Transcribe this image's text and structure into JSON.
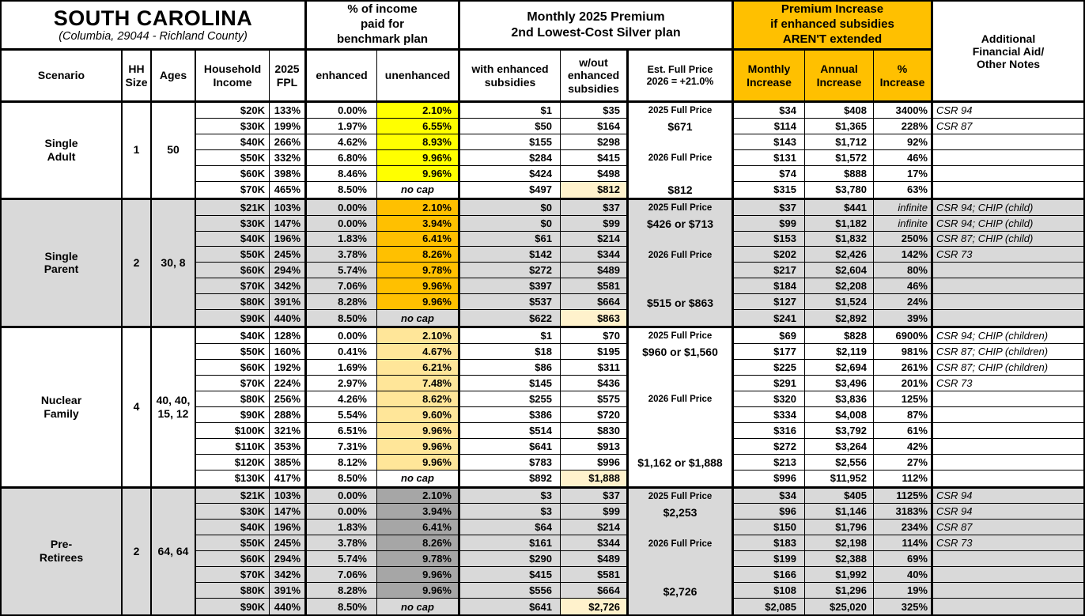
{
  "title": {
    "state": "SOUTH CAROLINA",
    "location": "(Columbia, 29044 - Richland County)"
  },
  "header": {
    "pct_income_group": "% of income\npaid for\nbenchmark plan",
    "premium_group": "Monthly 2025 Premium\n2nd Lowest-Cost Silver plan",
    "increase_group": "Premium Increase\nif enhanced subsidies\nAREN'T extended",
    "notes_col": "Additional\nFinancial Aid/\nOther Notes",
    "cols": {
      "scenario": "Scenario",
      "hh": "HH\nSize",
      "ages": "Ages",
      "income": "Household\nIncome",
      "fpl": "2025\nFPL",
      "enhanced": "enhanced",
      "unenhanced": "unenhanced",
      "with_sub": "with enhanced\nsubsidies",
      "wo_sub": "w/out\nenhanced\nsubsidies",
      "est": "Est. Full Price\n2026 = +21.0%",
      "monthly": "Monthly\nIncrease",
      "annual": "Annual\nIncrease",
      "pct": "%\nIncrease"
    }
  },
  "colors": {
    "accent_orange": "#FFC000",
    "yellow": "#FFFF00",
    "tan": "#FFE699",
    "dark_gray": "#A6A6A6",
    "band_gray": "#D9D9D9",
    "highlight_cream": "#FFF2CC"
  },
  "row_fields": [
    "income",
    "fpl",
    "enhanced",
    "unenhanced",
    "with_subsidies",
    "without_subsidies",
    "monthly_increase",
    "annual_increase",
    "pct_increase",
    "note"
  ],
  "sections": [
    {
      "scenario": "Single\nAdult",
      "hh_size": "1",
      "ages": "50",
      "gray": false,
      "unenhanced_color": "#FFFF00",
      "rows": [
        [
          "$20K",
          "133%",
          "0.00%",
          "2.10%",
          "$1",
          "$35",
          "$34",
          "$408",
          "3400%",
          "CSR 94"
        ],
        [
          "$30K",
          "199%",
          "1.97%",
          "6.55%",
          "$50",
          "$164",
          "$114",
          "$1,365",
          "228%",
          "CSR 87"
        ],
        [
          "$40K",
          "266%",
          "4.62%",
          "8.93%",
          "$155",
          "$298",
          "$143",
          "$1,712",
          "92%",
          ""
        ],
        [
          "$50K",
          "332%",
          "6.80%",
          "9.96%",
          "$284",
          "$415",
          "$131",
          "$1,572",
          "46%",
          ""
        ],
        [
          "$60K",
          "398%",
          "8.46%",
          "9.96%",
          "$424",
          "$498",
          "$74",
          "$888",
          "17%",
          ""
        ],
        [
          "$70K",
          "465%",
          "8.50%",
          "no cap",
          "$497",
          "$812",
          "$315",
          "$3,780",
          "63%",
          ""
        ]
      ],
      "full_price_labels": [
        {
          "row": 0,
          "text": "2025 Full Price",
          "small": true
        },
        {
          "row": 1,
          "text": "$671",
          "small": false
        },
        {
          "row": 3,
          "text": "2026 Full Price",
          "small": true
        },
        {
          "row": 5,
          "text": "$812",
          "small": false
        }
      ]
    },
    {
      "scenario": "Single\nParent",
      "hh_size": "2",
      "ages": "30, 8",
      "gray": true,
      "unenhanced_color": "#FFC000",
      "rows": [
        [
          "$21K",
          "103%",
          "0.00%",
          "2.10%",
          "$0",
          "$37",
          "$37",
          "$441",
          "infinite",
          "CSR 94; CHIP (child)"
        ],
        [
          "$30K",
          "147%",
          "0.00%",
          "3.94%",
          "$0",
          "$99",
          "$99",
          "$1,182",
          "infinite",
          "CSR 94; CHIP (child)"
        ],
        [
          "$40K",
          "196%",
          "1.83%",
          "6.41%",
          "$61",
          "$214",
          "$153",
          "$1,832",
          "250%",
          "CSR 87; CHIP (child)"
        ],
        [
          "$50K",
          "245%",
          "3.78%",
          "8.26%",
          "$142",
          "$344",
          "$202",
          "$2,426",
          "142%",
          "CSR 73"
        ],
        [
          "$60K",
          "294%",
          "5.74%",
          "9.78%",
          "$272",
          "$489",
          "$217",
          "$2,604",
          "80%",
          ""
        ],
        [
          "$70K",
          "342%",
          "7.06%",
          "9.96%",
          "$397",
          "$581",
          "$184",
          "$2,208",
          "46%",
          ""
        ],
        [
          "$80K",
          "391%",
          "8.28%",
          "9.96%",
          "$537",
          "$664",
          "$127",
          "$1,524",
          "24%",
          ""
        ],
        [
          "$90K",
          "440%",
          "8.50%",
          "no cap",
          "$622",
          "$863",
          "$241",
          "$2,892",
          "39%",
          ""
        ]
      ],
      "full_price_labels": [
        {
          "row": 0,
          "text": "2025 Full Price",
          "small": true
        },
        {
          "row": 1,
          "text": "$426 or $713",
          "small": false
        },
        {
          "row": 3,
          "text": "2026 Full Price",
          "small": true
        },
        {
          "row": 6,
          "text": "$515 or $863",
          "small": false
        }
      ]
    },
    {
      "scenario": "Nuclear\nFamily",
      "hh_size": "4",
      "ages": "40, 40,\n15, 12",
      "gray": false,
      "unenhanced_color": "#FFE699",
      "rows": [
        [
          "$40K",
          "128%",
          "0.00%",
          "2.10%",
          "$1",
          "$70",
          "$69",
          "$828",
          "6900%",
          "CSR 94; CHIP (children)"
        ],
        [
          "$50K",
          "160%",
          "0.41%",
          "4.67%",
          "$18",
          "$195",
          "$177",
          "$2,119",
          "981%",
          "CSR 87; CHIP (children)"
        ],
        [
          "$60K",
          "192%",
          "1.69%",
          "6.21%",
          "$86",
          "$311",
          "$225",
          "$2,694",
          "261%",
          "CSR 87; CHIP (children)"
        ],
        [
          "$70K",
          "224%",
          "2.97%",
          "7.48%",
          "$145",
          "$436",
          "$291",
          "$3,496",
          "201%",
          "CSR 73"
        ],
        [
          "$80K",
          "256%",
          "4.26%",
          "8.62%",
          "$255",
          "$575",
          "$320",
          "$3,836",
          "125%",
          ""
        ],
        [
          "$90K",
          "288%",
          "5.54%",
          "9.60%",
          "$386",
          "$720",
          "$334",
          "$4,008",
          "87%",
          ""
        ],
        [
          "$100K",
          "321%",
          "6.51%",
          "9.96%",
          "$514",
          "$830",
          "$316",
          "$3,792",
          "61%",
          ""
        ],
        [
          "$110K",
          "353%",
          "7.31%",
          "9.96%",
          "$641",
          "$913",
          "$272",
          "$3,264",
          "42%",
          ""
        ],
        [
          "$120K",
          "385%",
          "8.12%",
          "9.96%",
          "$783",
          "$996",
          "$213",
          "$2,556",
          "27%",
          ""
        ],
        [
          "$130K",
          "417%",
          "8.50%",
          "no cap",
          "$892",
          "$1,888",
          "$996",
          "$11,952",
          "112%",
          ""
        ]
      ],
      "full_price_labels": [
        {
          "row": 0,
          "text": "2025 Full Price",
          "small": true
        },
        {
          "row": 1,
          "text": "$960 or $1,560",
          "small": false
        },
        {
          "row": 4,
          "text": "2026 Full Price",
          "small": true
        },
        {
          "row": 8,
          "text": "$1,162 or $1,888",
          "small": false
        }
      ]
    },
    {
      "scenario": "Pre-\nRetirees",
      "hh_size": "2",
      "ages": "64, 64",
      "gray": true,
      "unenhanced_color": "#A6A6A6",
      "rows": [
        [
          "$21K",
          "103%",
          "0.00%",
          "2.10%",
          "$3",
          "$37",
          "$34",
          "$405",
          "1125%",
          "CSR 94"
        ],
        [
          "$30K",
          "147%",
          "0.00%",
          "3.94%",
          "$3",
          "$99",
          "$96",
          "$1,146",
          "3183%",
          "CSR 94"
        ],
        [
          "$40K",
          "196%",
          "1.83%",
          "6.41%",
          "$64",
          "$214",
          "$150",
          "$1,796",
          "234%",
          "CSR 87"
        ],
        [
          "$50K",
          "245%",
          "3.78%",
          "8.26%",
          "$161",
          "$344",
          "$183",
          "$2,198",
          "114%",
          "CSR 73"
        ],
        [
          "$60K",
          "294%",
          "5.74%",
          "9.78%",
          "$290",
          "$489",
          "$199",
          "$2,388",
          "69%",
          ""
        ],
        [
          "$70K",
          "342%",
          "7.06%",
          "9.96%",
          "$415",
          "$581",
          "$166",
          "$1,992",
          "40%",
          ""
        ],
        [
          "$80K",
          "391%",
          "8.28%",
          "9.96%",
          "$556",
          "$664",
          "$108",
          "$1,296",
          "19%",
          ""
        ],
        [
          "$90K",
          "440%",
          "8.50%",
          "no cap",
          "$641",
          "$2,726",
          "$2,085",
          "$25,020",
          "325%",
          ""
        ]
      ],
      "full_price_labels": [
        {
          "row": 0,
          "text": "2025 Full Price",
          "small": true
        },
        {
          "row": 1,
          "text": "$2,253",
          "small": false
        },
        {
          "row": 3,
          "text": "2026 Full Price",
          "small": true
        },
        {
          "row": 6,
          "text": "$2,726",
          "small": false
        }
      ]
    }
  ]
}
